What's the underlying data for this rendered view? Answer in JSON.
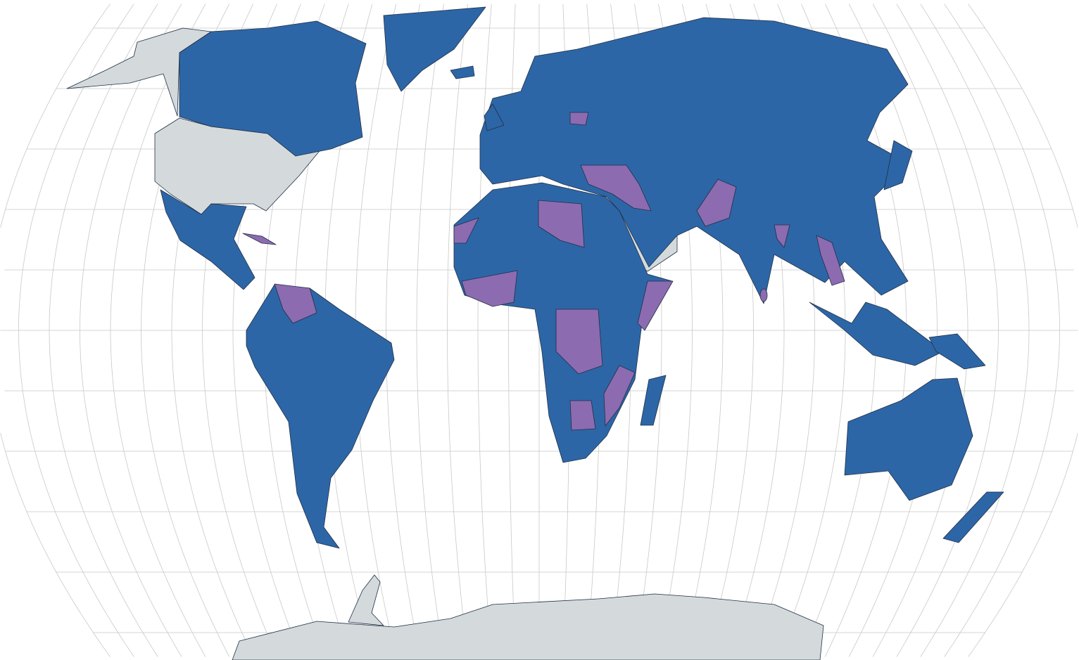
{
  "map": {
    "type": "world choropleth",
    "graticule": true,
    "colors": {
      "category_a": "#2d66a7",
      "category_b": "#8c6bb1",
      "no_data": "#d4dadc",
      "background": "#ffffff",
      "graticule": "#c8c8c8",
      "border": "#1f2f44"
    }
  }
}
